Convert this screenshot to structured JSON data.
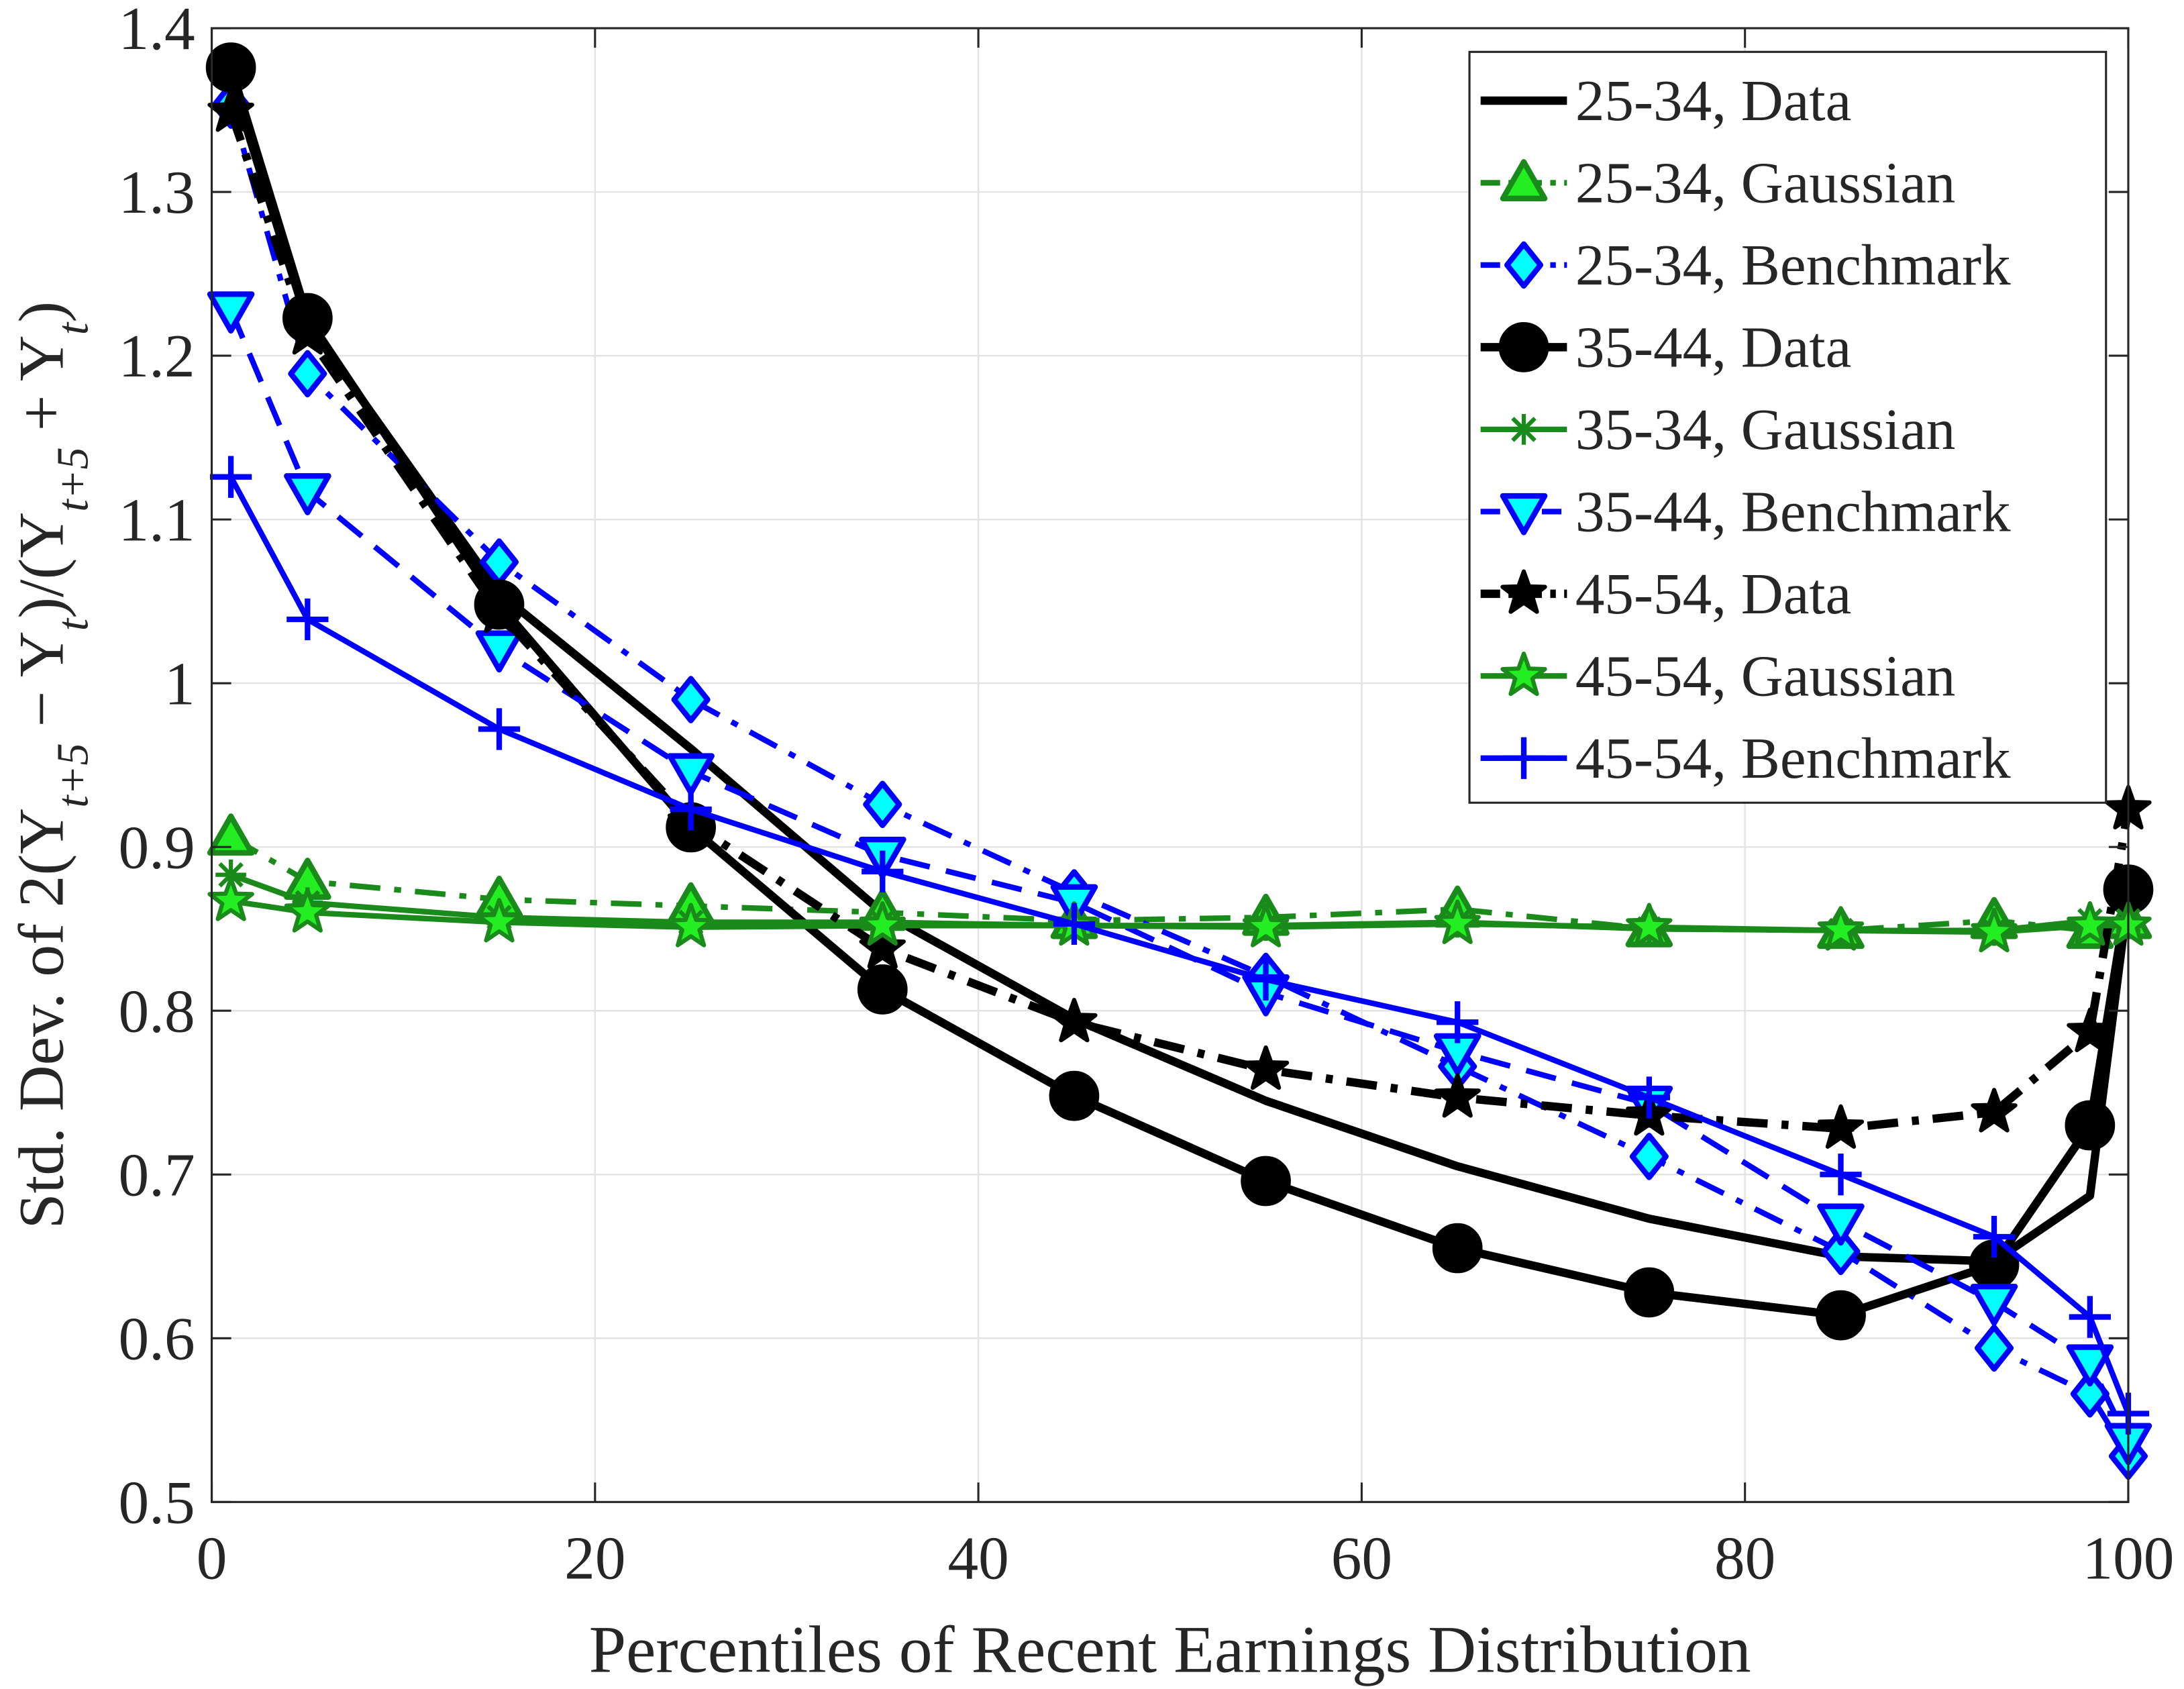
{
  "chart_data": {
    "type": "line",
    "xlabel": "Percentiles of Recent Earnings Distribution",
    "ylabel_parts": [
      {
        "t": "Std. Dev. of 2(Y"
      },
      {
        "sub": "t+5"
      },
      {
        "t": " − Y"
      },
      {
        "sub": "t"
      },
      {
        "t": ")/(Y"
      },
      {
        "sub": "t+5"
      },
      {
        "t": " + Y"
      },
      {
        "sub": "t"
      },
      {
        "t": ")"
      }
    ],
    "xlim": [
      0,
      100
    ],
    "ylim": [
      0.5,
      1.4
    ],
    "xticks": [
      0,
      20,
      40,
      60,
      80,
      100
    ],
    "xtick_labels": [
      "0",
      "20",
      "40",
      "60",
      "80",
      "100"
    ],
    "yticks": [
      0.5,
      0.6,
      0.7,
      0.8,
      0.9,
      1.0,
      1.1,
      1.2,
      1.3,
      1.4
    ],
    "ytick_labels": [
      "0.5",
      "0.6",
      "0.7",
      "0.8",
      "0.9",
      "1",
      "1.1",
      "1.2",
      "1.3",
      "1.4"
    ],
    "grid": true,
    "legend_position": "top-right",
    "x": [
      1,
      5,
      15,
      25,
      35,
      45,
      55,
      65,
      75,
      85,
      93,
      98,
      100
    ],
    "series": [
      {
        "name": "25-34, Data",
        "color": "#000000",
        "dash": "solid",
        "marker": "none",
        "fill": "none",
        "values": [
          1.37,
          1.22,
          1.055,
          0.96,
          0.86,
          0.795,
          0.745,
          0.705,
          0.673,
          0.65,
          0.647,
          0.687,
          0.87
        ]
      },
      {
        "name": "25-34, Gaussian",
        "color": "#1a8a1a",
        "dash": "dashdot",
        "marker": "triangle-up",
        "fill": "#22ee22",
        "values": [
          0.906,
          0.879,
          0.868,
          0.864,
          0.86,
          0.855,
          0.857,
          0.862,
          0.85,
          0.849,
          0.855,
          0.849,
          0.855
        ]
      },
      {
        "name": "25-34, Benchmark",
        "color": "#0000ff",
        "dash": "dashdot",
        "marker": "diamond",
        "fill": "#00ffff",
        "values": [
          1.353,
          1.189,
          1.074,
          0.99,
          0.926,
          0.872,
          0.821,
          0.766,
          0.711,
          0.653,
          0.594,
          0.566,
          0.528
        ]
      },
      {
        "name": "35-44, Data",
        "color": "#000000",
        "dash": "solid",
        "marker": "circle",
        "fill": "#000000",
        "values": [
          1.376,
          1.223,
          1.048,
          0.912,
          0.813,
          0.748,
          0.696,
          0.655,
          0.628,
          0.614,
          0.645,
          0.73,
          0.874
        ]
      },
      {
        "name": "35-34, Gaussian",
        "color": "#1a8a1a",
        "dash": "solid",
        "marker": "asterisk",
        "fill": "none",
        "values": [
          0.883,
          0.866,
          0.857,
          0.854,
          0.854,
          0.852,
          0.852,
          0.854,
          0.85,
          0.849,
          0.849,
          0.855,
          0.855
        ]
      },
      {
        "name": "35-44, Benchmark",
        "color": "#0000ff",
        "dash": "dashed",
        "marker": "triangle-down",
        "fill": "#00ffff",
        "values": [
          1.228,
          1.117,
          1.021,
          0.946,
          0.895,
          0.866,
          0.811,
          0.775,
          0.743,
          0.671,
          0.622,
          0.585,
          0.537
        ]
      },
      {
        "name": "45-54, Data",
        "color": "#000000",
        "dash": "dashdot",
        "marker": "star",
        "fill": "#000000",
        "values": [
          1.349,
          1.213,
          1.043,
          0.915,
          0.838,
          0.793,
          0.764,
          0.747,
          0.736,
          0.728,
          0.738,
          0.787,
          0.923
        ]
      },
      {
        "name": "45-54, Gaussian",
        "color": "#1a8a1a",
        "dash": "solid",
        "marker": "star",
        "fill": "#22ee22",
        "values": [
          0.867,
          0.86,
          0.854,
          0.851,
          0.852,
          0.852,
          0.851,
          0.853,
          0.851,
          0.849,
          0.848,
          0.852,
          0.852
        ]
      },
      {
        "name": "45-54, Benchmark",
        "color": "#0000ff",
        "dash": "solid",
        "marker": "plus",
        "fill": "none",
        "values": [
          1.126,
          1.039,
          0.972,
          0.923,
          0.885,
          0.853,
          0.819,
          0.793,
          0.747,
          0.7,
          0.662,
          0.613,
          0.554
        ]
      }
    ]
  }
}
